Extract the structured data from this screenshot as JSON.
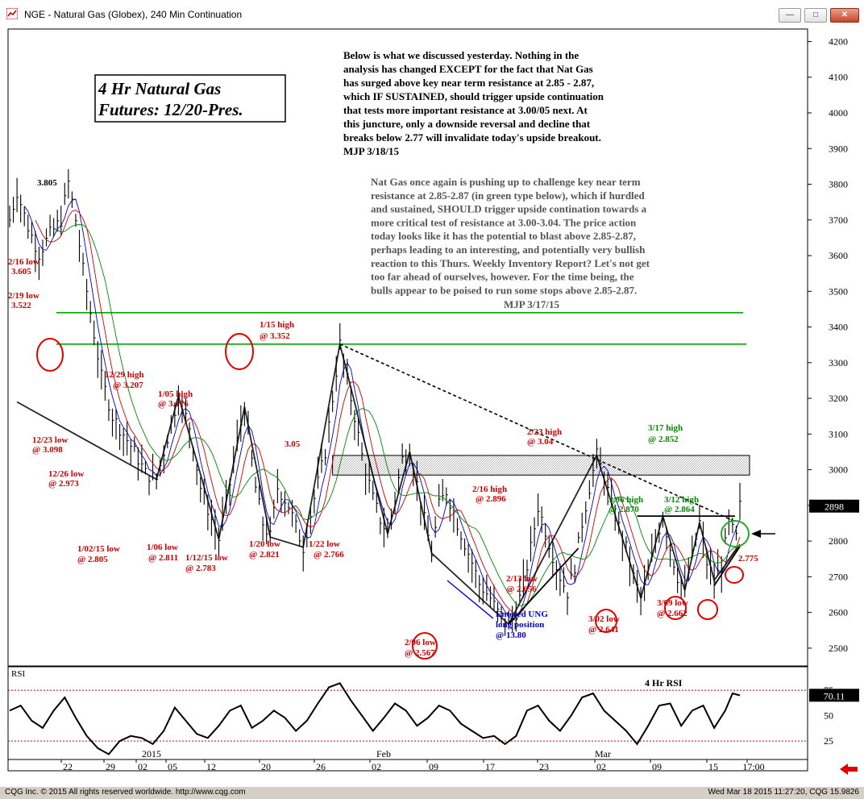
{
  "window": {
    "title": "NGE - Natural Gas (Globex), 240 Min Continuation",
    "buttons": [
      "minimize",
      "restore",
      "close"
    ]
  },
  "chart_data": {
    "type": "candlestick",
    "symbol": "NGE",
    "current_price_label": "2898",
    "y_axis": {
      "ticks": [
        2500,
        2600,
        2700,
        2800,
        2900,
        3000,
        3100,
        3200,
        3300,
        3400,
        3500,
        3600,
        3700,
        3800,
        3900,
        4000,
        4100,
        4200
      ],
      "ylim": [
        2450,
        4235
      ]
    },
    "x_axis": {
      "day_ticks": [
        "22",
        "29",
        "02",
        "05",
        "12",
        "20",
        "26",
        "02",
        "09",
        "17",
        "23",
        "02",
        "09",
        "15",
        "17:00"
      ],
      "month_labels": [
        "2015",
        "Feb",
        "Mar"
      ]
    },
    "price_path": [
      [
        0,
        3700
      ],
      [
        2,
        3780
      ],
      [
        5,
        3680
      ],
      [
        8,
        3605
      ],
      [
        11,
        3660
      ],
      [
        14,
        3700
      ],
      [
        16,
        3805
      ],
      [
        18,
        3700
      ],
      [
        20,
        3560
      ],
      [
        22,
        3440
      ],
      [
        25,
        3260
      ],
      [
        28,
        3150
      ],
      [
        31,
        3100
      ],
      [
        34,
        3050
      ],
      [
        37,
        2990
      ],
      [
        40,
        2973
      ],
      [
        43,
        3090
      ],
      [
        46,
        3207
      ],
      [
        49,
        3120
      ],
      [
        52,
        2950
      ],
      [
        55,
        2860
      ],
      [
        57,
        2805
      ],
      [
        60,
        2960
      ],
      [
        62,
        3080
      ],
      [
        64,
        3176
      ],
      [
        67,
        2950
      ],
      [
        69,
        2850
      ],
      [
        71,
        2811
      ],
      [
        73,
        2950
      ],
      [
        76,
        2900
      ],
      [
        78,
        2840
      ],
      [
        80,
        2783
      ],
      [
        83,
        2920
      ],
      [
        86,
        3050
      ],
      [
        88,
        3200
      ],
      [
        90,
        3352
      ],
      [
        92,
        3250
      ],
      [
        94,
        3150
      ],
      [
        96,
        3040
      ],
      [
        99,
        2920
      ],
      [
        101,
        2860
      ],
      [
        103,
        2821
      ],
      [
        105,
        2920
      ],
      [
        107,
        3030
      ],
      [
        109,
        3050
      ],
      [
        111,
        2960
      ],
      [
        113,
        2860
      ],
      [
        115,
        2766
      ],
      [
        117,
        2900
      ],
      [
        119,
        2940
      ],
      [
        121,
        2880
      ],
      [
        123,
        2820
      ],
      [
        126,
        2740
      ],
      [
        128,
        2680
      ],
      [
        131,
        2640
      ],
      [
        133,
        2600
      ],
      [
        136,
        2567
      ],
      [
        138,
        2600
      ],
      [
        140,
        2680
      ],
      [
        142,
        2780
      ],
      [
        144,
        2896
      ],
      [
        146,
        2830
      ],
      [
        148,
        2760
      ],
      [
        150,
        2700
      ],
      [
        152,
        2656
      ],
      [
        154,
        2730
      ],
      [
        156,
        2850
      ],
      [
        158,
        2950
      ],
      [
        160,
        3040
      ],
      [
        162,
        2980
      ],
      [
        164,
        2900
      ],
      [
        166,
        2840
      ],
      [
        168,
        2780
      ],
      [
        170,
        2700
      ],
      [
        172,
        2641
      ],
      [
        174,
        2700
      ],
      [
        176,
        2800
      ],
      [
        178,
        2870
      ],
      [
        180,
        2780
      ],
      [
        182,
        2700
      ],
      [
        184,
        2662
      ],
      [
        186,
        2760
      ],
      [
        188,
        2852
      ],
      [
        190,
        2740
      ],
      [
        192,
        2690
      ],
      [
        194,
        2730
      ],
      [
        196,
        2850
      ],
      [
        198,
        2810
      ],
      [
        199,
        2898
      ]
    ],
    "x_points": 200,
    "horizontal_levels": [
      {
        "value": 3440,
        "color": "#00aa00"
      },
      {
        "value": 3352,
        "color": "#00aa00"
      },
      {
        "value": 2870,
        "color": "#000000"
      }
    ],
    "resistance_zone": {
      "low": 2985,
      "high": 3040
    },
    "price_annotations": [
      {
        "text": "3.805",
        "color": "#000000"
      },
      {
        "text": "2/16 low",
        "color": "#cc0000"
      },
      {
        "text": "3.605",
        "color": "#cc0000"
      },
      {
        "text": "2/19 low",
        "color": "#cc0000"
      },
      {
        "text": "3.522",
        "color": "#cc0000"
      },
      {
        "text": "1/15 high",
        "color": "#cc0000"
      },
      {
        "text": "@ 3.352",
        "color": "#cc0000"
      },
      {
        "text": "12/29 high",
        "color": "#cc0000"
      },
      {
        "text": "@ 3.207",
        "color": "#cc0000"
      },
      {
        "text": "1/05 high",
        "color": "#cc0000"
      },
      {
        "text": "@ 3.176",
        "color": "#cc0000"
      },
      {
        "text": "12/23 low",
        "color": "#cc0000"
      },
      {
        "text": "@ 3.098",
        "color": "#cc0000"
      },
      {
        "text": "12/26 low",
        "color": "#cc0000"
      },
      {
        "text": "@ 2.973",
        "color": "#cc0000"
      },
      {
        "text": "3.05",
        "color": "#cc0000"
      },
      {
        "text": "2/23 high",
        "color": "#cc0000"
      },
      {
        "text": "@ 3.04",
        "color": "#cc0000"
      },
      {
        "text": "3/17 high",
        "color": "#008800"
      },
      {
        "text": "@ 2.852",
        "color": "#008800"
      },
      {
        "text": "2/16 high",
        "color": "#cc0000"
      },
      {
        "text": "@ 2.896",
        "color": "#cc0000"
      },
      {
        "text": "3/06 high",
        "color": "#008800"
      },
      {
        "text": "@ 2.870",
        "color": "#008800"
      },
      {
        "text": "3/12 high",
        "color": "#008800"
      },
      {
        "text": "@ 2.864",
        "color": "#008800"
      },
      {
        "text": "1/02/15 low",
        "color": "#cc0000"
      },
      {
        "text": "@ 2.805",
        "color": "#cc0000"
      },
      {
        "text": "1/06 low",
        "color": "#cc0000"
      },
      {
        "text": "@ 2.811",
        "color": "#cc0000"
      },
      {
        "text": "1/12/15 low",
        "color": "#cc0000"
      },
      {
        "text": "@ 2.783",
        "color": "#cc0000"
      },
      {
        "text": "1/20 low",
        "color": "#cc0000"
      },
      {
        "text": "@ 2.821",
        "color": "#cc0000"
      },
      {
        "text": "1/22 low",
        "color": "#cc0000"
      },
      {
        "text": "@ 2.766",
        "color": "#cc0000"
      },
      {
        "text": "2/13 low",
        "color": "#cc0000"
      },
      {
        "text": "@ 2.656",
        "color": "#cc0000"
      },
      {
        "text": "Entered UNG",
        "color": "#0000cc"
      },
      {
        "text": "long position",
        "color": "#0000cc"
      },
      {
        "text": "@ 13.80",
        "color": "#0000cc"
      },
      {
        "text": "3/02 low",
        "color": "#cc0000"
      },
      {
        "text": "@ 2.641",
        "color": "#cc0000"
      },
      {
        "text": "3/09 low",
        "color": "#cc0000"
      },
      {
        "text": "@ 2.662",
        "color": "#cc0000"
      },
      {
        "text": "2.775",
        "color": "#cc0000"
      },
      {
        "text": "2/06 low",
        "color": "#cc0000"
      },
      {
        "text": "@ 2.567",
        "color": "#cc0000"
      }
    ],
    "title_box": [
      "4 Hr Natural Gas",
      "Futures:  12/20-Pres."
    ],
    "commentary_1": [
      "Below is what we discussed yesterday. Nothing in the",
      "analysis has changed EXCEPT for the fact that Nat Gas",
      "has surged above key near term resistance at 2.85 - 2.87,",
      "which IF SUSTAINED, should trigger upside continuation",
      "that tests more important resistance at 3.00/05 next. At",
      "this juncture, only a downside reversal and decline that",
      "breaks below 2.77 will invalidate today's upside breakout.",
      "MJP 3/18/15"
    ],
    "commentary_2": [
      "Nat Gas once again is pushing up to challenge key near term",
      "resistance at 2.85-2.87 (in green type below), which if hurdled",
      "and sustained, SHOULD trigger upside contination towards a",
      "more critical test of resistance at 3.00-3.04. The price action",
      "today looks like it has the potential to blast above 2.85-2.87,",
      "perhaps leading to an interesting, and potentially very bullish",
      "reaction to this Thurs. Weekly Inventory Report? Let's not get",
      "too far ahead of ourselves, however. For the time being, the",
      "bulls appear to be poised to run some stops above 2.85-2.87."
    ],
    "commentary_2_sig": "MJP 3/17/15",
    "rsi": {
      "label": "RSI",
      "title": "4 Hr RSI",
      "current_label": "70.11",
      "ticks": [
        "75",
        "50",
        "25"
      ],
      "levels": [
        75,
        25
      ],
      "ylim": [
        10,
        95
      ],
      "path": [
        [
          0,
          55
        ],
        [
          3,
          60
        ],
        [
          6,
          45
        ],
        [
          9,
          38
        ],
        [
          12,
          55
        ],
        [
          15,
          68
        ],
        [
          18,
          48
        ],
        [
          21,
          30
        ],
        [
          24,
          18
        ],
        [
          27,
          12
        ],
        [
          30,
          25
        ],
        [
          33,
          30
        ],
        [
          36,
          28
        ],
        [
          39,
          22
        ],
        [
          42,
          35
        ],
        [
          45,
          58
        ],
        [
          48,
          45
        ],
        [
          51,
          32
        ],
        [
          54,
          28
        ],
        [
          57,
          40
        ],
        [
          60,
          55
        ],
        [
          63,
          60
        ],
        [
          66,
          38
        ],
        [
          69,
          45
        ],
        [
          72,
          55
        ],
        [
          75,
          48
        ],
        [
          78,
          35
        ],
        [
          81,
          45
        ],
        [
          84,
          62
        ],
        [
          87,
          78
        ],
        [
          90,
          82
        ],
        [
          93,
          65
        ],
        [
          96,
          50
        ],
        [
          99,
          35
        ],
        [
          102,
          48
        ],
        [
          105,
          62
        ],
        [
          108,
          55
        ],
        [
          111,
          40
        ],
        [
          114,
          48
        ],
        [
          117,
          60
        ],
        [
          120,
          55
        ],
        [
          123,
          42
        ],
        [
          126,
          35
        ],
        [
          129,
          28
        ],
        [
          132,
          30
        ],
        [
          135,
          22
        ],
        [
          138,
          30
        ],
        [
          141,
          55
        ],
        [
          144,
          60
        ],
        [
          147,
          45
        ],
        [
          150,
          35
        ],
        [
          153,
          50
        ],
        [
          156,
          68
        ],
        [
          159,
          72
        ],
        [
          162,
          55
        ],
        [
          165,
          45
        ],
        [
          168,
          35
        ],
        [
          171,
          22
        ],
        [
          174,
          40
        ],
        [
          177,
          60
        ],
        [
          180,
          62
        ],
        [
          183,
          40
        ],
        [
          186,
          55
        ],
        [
          189,
          60
        ],
        [
          192,
          38
        ],
        [
          195,
          55
        ],
        [
          197,
          72
        ],
        [
          199,
          70
        ]
      ]
    },
    "colors": {
      "price": "#000000",
      "ma_fast": "#0000cc",
      "ma_mid": "#cc0000",
      "ma_slow": "#008800",
      "green_level": "#00aa00",
      "annotation_red": "#cc0000",
      "zone": "#cccccc"
    }
  },
  "footer": {
    "copyright": "CQG Inc. © 2015 All rights reserved worldwide.  http://www.cqg.com",
    "timestamp": "Wed Mar 18 2015 11:27:20, CQG 15.9826"
  }
}
